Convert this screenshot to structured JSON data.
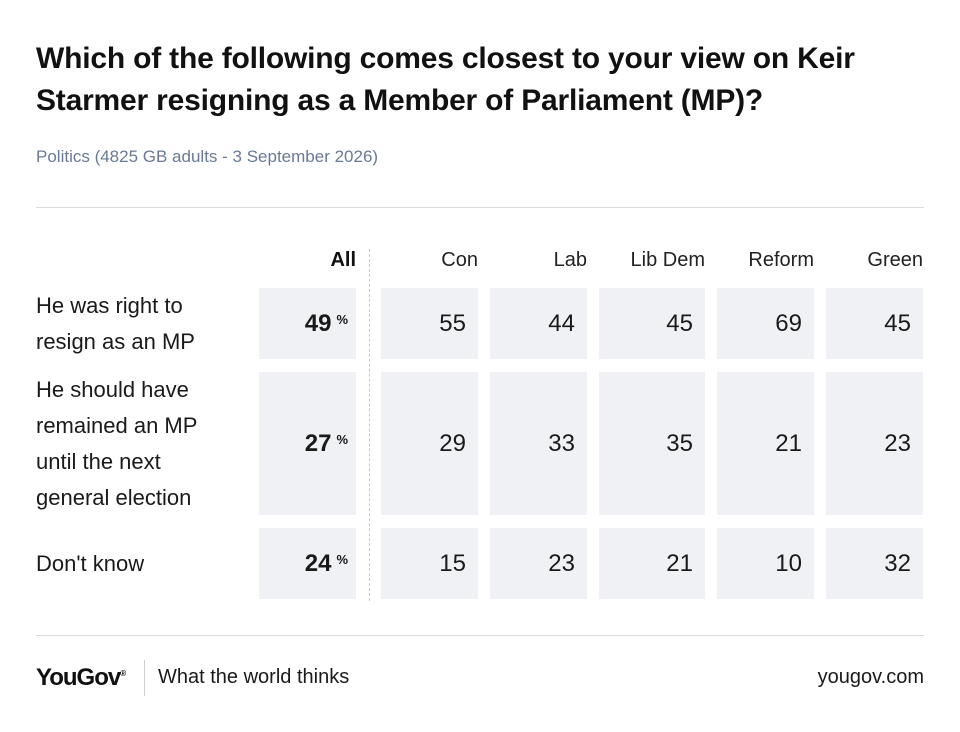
{
  "header": {
    "title": "Which of the following comes closest to your view on Keir Starmer resigning as a Member of Parliament (MP)?",
    "subtitle": "Politics (4825 GB adults - 3 September 2026)"
  },
  "chart_data": {
    "type": "table",
    "title": "Which of the following comes closest to your view on Keir Starmer resigning as a Member of Parliament (MP)?",
    "columns": [
      "All",
      "Con",
      "Lab",
      "Lib Dem",
      "Reform",
      "Green"
    ],
    "unit": "%",
    "rows": [
      {
        "label": "He was right to resign as an MP",
        "values": [
          "49",
          "55",
          "44",
          "45",
          "69",
          "45"
        ]
      },
      {
        "label": "He should have remained an MP until the next general election",
        "values": [
          "27",
          "29",
          "33",
          "35",
          "21",
          "23"
        ]
      },
      {
        "label": "Don't know",
        "values": [
          "24",
          "15",
          "23",
          "21",
          "10",
          "32"
        ]
      }
    ]
  },
  "footer": {
    "logo": "YouGov",
    "logo_mark": "®",
    "tagline": "What the world thinks",
    "url": "yougov.com"
  }
}
